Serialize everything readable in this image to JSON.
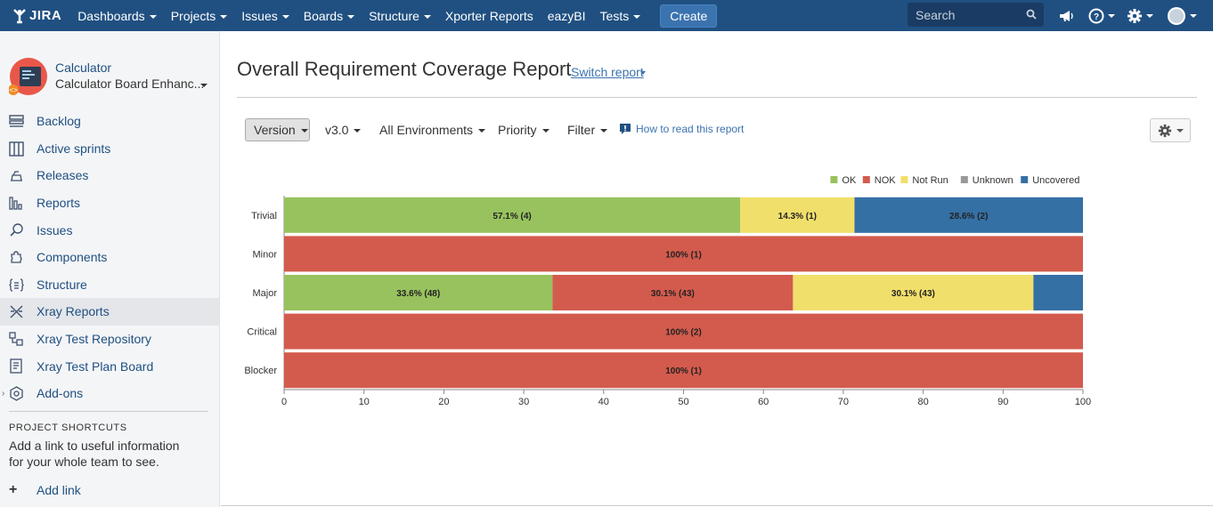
{
  "topnav": {
    "logo_text": "JIRA",
    "items": [
      {
        "label": "Dashboards",
        "caret": true
      },
      {
        "label": "Projects",
        "caret": true
      },
      {
        "label": "Issues",
        "caret": true
      },
      {
        "label": "Boards",
        "caret": true
      },
      {
        "label": "Structure",
        "caret": true
      },
      {
        "label": "Xporter Reports",
        "caret": false
      },
      {
        "label": "eazyBI",
        "caret": false
      },
      {
        "label": "Tests",
        "caret": true
      }
    ],
    "create_label": "Create",
    "search_placeholder": "Search",
    "bg_color": "#205081"
  },
  "sidebar": {
    "project_name": "Calculator",
    "board_name": "Calculator Board Enhanc...",
    "items": [
      {
        "label": "Backlog",
        "icon": "backlog-icon",
        "active": false
      },
      {
        "label": "Active sprints",
        "icon": "active-sprints-icon",
        "active": false
      },
      {
        "label": "Releases",
        "icon": "releases-icon",
        "active": false
      },
      {
        "label": "Reports",
        "icon": "reports-icon",
        "active": false
      },
      {
        "label": "Issues",
        "icon": "issues-icon",
        "active": false
      },
      {
        "label": "Components",
        "icon": "components-icon",
        "active": false
      },
      {
        "label": "Structure",
        "icon": "structure-icon",
        "active": false
      },
      {
        "label": "Xray Reports",
        "icon": "xray-reports-icon",
        "active": true
      },
      {
        "label": "Xray Test Repository",
        "icon": "xray-test-repository-icon",
        "active": false
      },
      {
        "label": "Xray Test Plan Board",
        "icon": "xray-test-plan-board-icon",
        "active": false
      },
      {
        "label": "Add-ons",
        "icon": "add-ons-icon",
        "active": false
      }
    ],
    "shortcuts_title": "PROJECT SHORTCUTS",
    "shortcuts_text": "Add a link to useful information for your whole team to see.",
    "add_link": "Add link"
  },
  "main": {
    "title": "Overall Requirement Coverage Report",
    "switch_report": "Switch report",
    "toolbar": {
      "version": "Version",
      "v": "v3.0",
      "environments": "All Environments",
      "priority": "Priority",
      "filter": "Filter",
      "howto": "How to read this report"
    }
  },
  "chart_data": {
    "type": "bar",
    "orientation": "horizontal",
    "stacked": true,
    "categories": [
      "Trivial",
      "Minor",
      "Major",
      "Critical",
      "Blocker"
    ],
    "series": [
      {
        "name": "OK",
        "color": "#98c25e",
        "values": [
          57.1,
          0,
          33.6,
          0,
          0
        ],
        "labels": [
          "57.1% (4)",
          "",
          "33.6% (48)",
          "",
          ""
        ]
      },
      {
        "name": "NOK",
        "color": "#d35b4d",
        "values": [
          0,
          100,
          30.1,
          100,
          100
        ],
        "labels": [
          "",
          "100% (1)",
          "30.1% (43)",
          "100% (2)",
          "100% (1)"
        ]
      },
      {
        "name": "Not Run",
        "color": "#f1df6b",
        "values": [
          14.3,
          0,
          30.1,
          0,
          0
        ],
        "labels": [
          "14.3% (1)",
          "",
          "30.1% (43)",
          "",
          ""
        ]
      },
      {
        "name": "Unknown",
        "color": "#999999",
        "values": [
          0,
          0,
          0,
          0,
          0
        ],
        "labels": [
          "",
          "",
          "",
          "",
          ""
        ]
      },
      {
        "name": "Uncovered",
        "color": "#3570a5",
        "values": [
          28.6,
          0,
          6.2,
          0,
          0
        ],
        "labels": [
          "28.6% (2)",
          "",
          "",
          "",
          ""
        ]
      }
    ],
    "xlim": [
      0,
      100
    ],
    "xticks": [
      "0",
      "10",
      "20",
      "30",
      "40",
      "50",
      "60",
      "70",
      "80",
      "90",
      "100"
    ],
    "legend_position": "top-right",
    "grid": false
  }
}
